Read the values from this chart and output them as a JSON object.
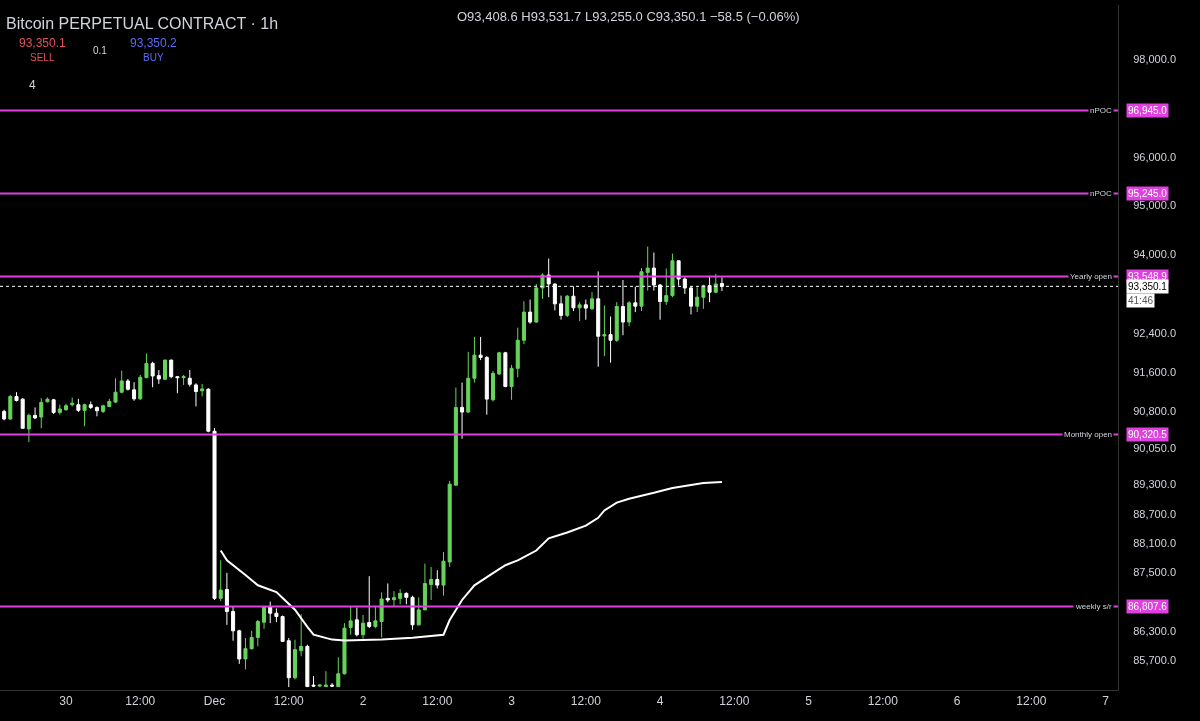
{
  "chart_data": {
    "type": "candlestick",
    "title": "Bitcoin PERPETUAL CONTRACT · 1h",
    "x": [
      "--11-29T14:00",
      "--11-29T15:00",
      "--11-29T16:00",
      "--11-29T17:00",
      "--11-29T18:00",
      "--11-29T19:00",
      "--11-29T20:00",
      "--11-29T21:00",
      "--11-29T22:00",
      "--11-29T23:00",
      "--11-30T00:00",
      "--11-30T01:00",
      "--11-30T02:00",
      "--11-30T03:00",
      "--11-30T04:00",
      "--11-30T05:00",
      "--11-30T06:00",
      "--11-30T07:00",
      "--11-30T08:00",
      "--11-30T09:00",
      "--11-30T10:00",
      "--11-30T11:00",
      "--11-30T12:00",
      "--11-30T13:00",
      "--11-30T14:00",
      "--11-30T15:00",
      "--11-30T16:00",
      "--11-30T17:00",
      "--11-30T18:00",
      "--11-30T19:00",
      "--11-30T20:00",
      "--11-30T21:00",
      "--11-30T22:00",
      "--11-30T23:00",
      "--12-01T00:00",
      "--12-01T01:00",
      "--12-01T02:00",
      "--12-01T03:00",
      "--12-01T04:00",
      "--12-01T05:00",
      "--12-01T06:00",
      "--12-01T07:00",
      "--12-01T08:00",
      "--12-01T09:00",
      "--12-01T10:00",
      "--12-01T11:00",
      "--12-01T12:00",
      "--12-01T13:00",
      "--12-01T14:00",
      "--12-01T15:00",
      "--12-01T16:00",
      "--12-01T17:00",
      "--12-01T18:00",
      "--12-01T19:00",
      "--12-01T20:00",
      "--12-01T21:00",
      "--12-01T22:00",
      "--12-01T23:00",
      "--12-02T00:00",
      "--12-02T01:00",
      "--12-02T02:00",
      "--12-02T03:00",
      "--12-02T04:00",
      "--12-02T05:00",
      "--12-02T06:00",
      "--12-02T07:00",
      "--12-02T08:00",
      "--12-02T09:00",
      "--12-02T10:00",
      "--12-02T11:00",
      "--12-02T12:00",
      "--12-02T13:00",
      "--12-02T14:00",
      "--12-02T15:00",
      "--12-02T16:00",
      "--12-02T17:00",
      "--12-02T18:00",
      "--12-02T19:00",
      "--12-02T20:00",
      "--12-02T21:00",
      "--12-02T22:00",
      "--12-02T23:00",
      "--12-03T00:00",
      "--12-03T01:00",
      "--12-03T02:00",
      "--12-03T03:00",
      "--12-03T04:00",
      "--12-03T05:00",
      "--12-03T06:00",
      "--12-03T07:00",
      "--12-03T08:00",
      "--12-03T09:00",
      "--12-03T10:00",
      "--12-03T11:00",
      "--12-03T12:00",
      "--12-03T13:00",
      "--12-03T14:00",
      "--12-03T15:00",
      "--12-03T16:00",
      "--12-03T17:00",
      "--12-03T18:00",
      "--12-03T19:00",
      "--12-03T20:00",
      "--12-03T21:00",
      "--12-03T22:00",
      "--12-03T23:00",
      "--12-04T00:00",
      "--12-04T01:00",
      "--12-04T02:00",
      "--12-04T03:00",
      "--12-04T04:00",
      "--12-04T05:00",
      "--12-04T06:00",
      "--12-04T07:00",
      "--12-04T08:00",
      "--12-04T09:00",
      "--12-04T10:00"
    ],
    "ohlc": [
      [
        90794,
        90828,
        90612,
        90639
      ],
      [
        90639,
        91132,
        90625,
        91099
      ],
      [
        91099,
        91186,
        90997,
        91017
      ],
      [
        91044,
        91065,
        90436,
        90449
      ],
      [
        90436,
        90747,
        90165,
        90713
      ],
      [
        90713,
        90875,
        90639,
        90659
      ],
      [
        90679,
        91065,
        90449,
        90977
      ],
      [
        90990,
        91078,
        90977,
        91044
      ],
      [
        91031,
        91051,
        90740,
        90774
      ],
      [
        90774,
        90930,
        90727,
        90842
      ],
      [
        90828,
        90950,
        90808,
        90909
      ],
      [
        90930,
        91078,
        90896,
        90963
      ],
      [
        90930,
        91051,
        90781,
        90815
      ],
      [
        90815,
        90950,
        90490,
        90930
      ],
      [
        90930,
        90997,
        90842,
        90875
      ],
      [
        90875,
        90896,
        90693,
        90808
      ],
      [
        90794,
        90930,
        90760,
        90909
      ],
      [
        90896,
        91051,
        90882,
        90997
      ],
      [
        90984,
        91471,
        90963,
        91186
      ],
      [
        91186,
        91626,
        91166,
        91416
      ],
      [
        91416,
        91457,
        91220,
        91247
      ],
      [
        91234,
        91389,
        91011,
        91051
      ],
      [
        91051,
        91538,
        91031,
        91491
      ],
      [
        91484,
        91978,
        91471,
        91775
      ],
      [
        91775,
        91809,
        91288,
        91518
      ],
      [
        91525,
        91640,
        91356,
        91457
      ],
      [
        91450,
        91856,
        91437,
        91842
      ],
      [
        91842,
        91856,
        91471,
        91504
      ],
      [
        91504,
        91518,
        91166,
        91484
      ],
      [
        91484,
        91538,
        91335,
        91504
      ],
      [
        91471,
        91640,
        91301,
        91349
      ],
      [
        91335,
        91369,
        90896,
        91200
      ],
      [
        91214,
        91356,
        91099,
        91254
      ],
      [
        91247,
        91268,
        90368,
        90389
      ],
      [
        90389,
        90456,
        86939,
        86973
      ],
      [
        86973,
        87751,
        86919,
        87142
      ],
      [
        87156,
        87494,
        86432,
        86703
      ],
      [
        86703,
        86804,
        86107,
        86310
      ],
      [
        86310,
        86331,
        85634,
        85735
      ],
      [
        85735,
        86162,
        85519,
        85945
      ],
      [
        85945,
        86310,
        85925,
        86175
      ],
      [
        86175,
        86534,
        85992,
        86500
      ],
      [
        86486,
        86818,
        86351,
        86804
      ],
      [
        86804,
        86906,
        86466,
        86669
      ],
      [
        86669,
        86770,
        86486,
        86601
      ],
      [
        86601,
        86622,
        86080,
        86094
      ],
      [
        86107,
        86162,
        85160,
        85350
      ],
      [
        85350,
        86128,
        85316,
        85925
      ],
      [
        85905,
        86649,
        85790,
        85992
      ],
      [
        85992,
        86026,
        85160,
        85170
      ],
      [
        85200,
        85384,
        85160,
        85180
      ],
      [
        85180,
        85220,
        85160,
        85200
      ],
      [
        85170,
        85485,
        85160,
        85200
      ],
      [
        85200,
        85240,
        85160,
        85180
      ],
      [
        85170,
        85769,
        85160,
        85431
      ],
      [
        85431,
        86466,
        85418,
        86364
      ],
      [
        86378,
        86804,
        86229,
        86513
      ],
      [
        86534,
        86784,
        86195,
        86229
      ],
      [
        86229,
        86635,
        86148,
        86466
      ],
      [
        86479,
        87426,
        86364,
        86398
      ],
      [
        86398,
        86804,
        86364,
        86513
      ],
      [
        86500,
        87095,
        86175,
        86960
      ],
      [
        86973,
        87277,
        86892,
        86939
      ],
      [
        86946,
        87122,
        86804,
        86987
      ],
      [
        86973,
        87162,
        86851,
        87075
      ],
      [
        87075,
        87095,
        86851,
        86994
      ],
      [
        86994,
        87027,
        86331,
        86432
      ],
      [
        86432,
        86994,
        86418,
        86737
      ],
      [
        86737,
        87683,
        86737,
        87277
      ],
      [
        87257,
        87615,
        86939,
        87359
      ],
      [
        87359,
        87548,
        87176,
        87244
      ],
      [
        87244,
        87920,
        87027,
        87731
      ],
      [
        87717,
        89374,
        87616,
        89306
      ],
      [
        89286,
        91281,
        89286,
        90875
      ],
      [
        90876,
        91383,
        90233,
        90781
      ],
      [
        90781,
        92012,
        90760,
        91471
      ],
      [
        91471,
        92316,
        91383,
        91944
      ],
      [
        91944,
        92316,
        91843,
        91897
      ],
      [
        91897,
        91924,
        90727,
        91045
      ],
      [
        91031,
        91620,
        90997,
        91572
      ],
      [
        91559,
        92012,
        91538,
        91992
      ],
      [
        91992,
        92012,
        91288,
        91302
      ],
      [
        91302,
        91741,
        91031,
        91674
      ],
      [
        91674,
        92505,
        91491,
        92248
      ],
      [
        92248,
        93046,
        92167,
        92823
      ],
      [
        92823,
        93080,
        92587,
        92620
      ],
      [
        92620,
        93398,
        92607,
        93317
      ],
      [
        93317,
        93615,
        93094,
        93581
      ],
      [
        93581,
        93919,
        93128,
        93398
      ],
      [
        93398,
        93412,
        92857,
        92992
      ],
      [
        92992,
        93161,
        92668,
        92756
      ],
      [
        92756,
        93175,
        92722,
        93148
      ],
      [
        93148,
        93351,
        92844,
        92911
      ],
      [
        92911,
        93026,
        92641,
        92972
      ],
      [
        92972,
        93080,
        92668,
        92905
      ],
      [
        92891,
        93229,
        92871,
        93094
      ],
      [
        93094,
        93655,
        91707,
        92330
      ],
      [
        92336,
        92959,
        91924,
        92363
      ],
      [
        92363,
        92735,
        91789,
        92248
      ],
      [
        92248,
        93026,
        92215,
        92938
      ],
      [
        92938,
        93479,
        92350,
        92620
      ],
      [
        92620,
        93046,
        92533,
        93013
      ],
      [
        93013,
        93344,
        92823,
        92945
      ],
      [
        92945,
        93723,
        92844,
        93648
      ],
      [
        93635,
        94162,
        93263,
        93723
      ],
      [
        93723,
        94041,
        93263,
        93378
      ],
      [
        93378,
        93398,
        92668,
        93040
      ],
      [
        93040,
        93716,
        92972,
        93161
      ],
      [
        93161,
        94020,
        93128,
        93872
      ],
      [
        93872,
        93885,
        93364,
        93500
      ],
      [
        93500,
        93533,
        93195,
        93317
      ],
      [
        93317,
        93344,
        92776,
        92945
      ],
      [
        92945,
        93331,
        92823,
        93128
      ],
      [
        93128,
        93385,
        92891,
        93364
      ],
      [
        93364,
        93567,
        93026,
        93229
      ],
      [
        93229,
        93601,
        93209,
        93398
      ],
      [
        93408.6,
        93531.7,
        93255.0,
        93350.1
      ]
    ],
    "colors": [
      "#ffffff",
      "#66d45a",
      "#ffffff",
      "#ffffff",
      "#66d45a",
      "#ffffff",
      "#66d45a",
      "#66d45a",
      "#ffffff",
      "#66d45a",
      "#66d45a",
      "#66d45a",
      "#ffffff",
      "#66d45a",
      "#ffffff",
      "#ffffff",
      "#66d45a",
      "#66d45a",
      "#66d45a",
      "#66d45a",
      "#ffffff",
      "#ffffff",
      "#66d45a",
      "#66d45a",
      "#ffffff",
      "#ffffff",
      "#66d45a",
      "#ffffff",
      "#ffffff",
      "#66d45a",
      "#ffffff",
      "#ffffff",
      "#66d45a",
      "#ffffff",
      "#ffffff",
      "#66d45a",
      "#ffffff",
      "#ffffff",
      "#ffffff",
      "#66d45a",
      "#66d45a",
      "#66d45a",
      "#66d45a",
      "#ffffff",
      "#ffffff",
      "#ffffff",
      "#ffffff",
      "#66d45a",
      "#66d45a",
      "#ffffff",
      "#ffffff",
      "#66d45a",
      "#66d45a",
      "#ffffff",
      "#66d45a",
      "#66d45a",
      "#66d45a",
      "#ffffff",
      "#66d45a",
      "#ffffff",
      "#66d45a",
      "#66d45a",
      "#ffffff",
      "#66d45a",
      "#66d45a",
      "#ffffff",
      "#ffffff",
      "#66d45a",
      "#66d45a",
      "#66d45a",
      "#ffffff",
      "#66d45a",
      "#66d45a",
      "#66d45a",
      "#ffffff",
      "#66d45a",
      "#66d45a",
      "#ffffff",
      "#ffffff",
      "#66d45a",
      "#66d45a",
      "#ffffff",
      "#66d45a",
      "#66d45a",
      "#66d45a",
      "#ffffff",
      "#66d45a",
      "#66d45a",
      "#ffffff",
      "#ffffff",
      "#ffffff",
      "#66d45a",
      "#ffffff",
      "#66d45a",
      "#ffffff",
      "#66d45a",
      "#ffffff",
      "#66d45a",
      "#ffffff",
      "#66d45a",
      "#ffffff",
      "#66d45a",
      "#ffffff",
      "#66d45a",
      "#66d45a",
      "#ffffff",
      "#ffffff",
      "#66d45a",
      "#66d45a",
      "#ffffff",
      "#ffffff",
      "#ffffff",
      "#66d45a",
      "#66d45a",
      "#ffffff",
      "#66d45a",
      "#ffffff"
    ],
    "series": [
      {
        "type": "line",
        "color": "#ffffff",
        "x": [
          "--12-01T01:00",
          "--12-01T02:00",
          "--12-01T05:00",
          "--12-01T07:00",
          "--12-01T10:00",
          "--12-01T11:00",
          "--12-01T13:00",
          "--12-01T15:00",
          "--12-01T16:00",
          "--12-01T19:00",
          "--12-01T21:00",
          "--12-02T03:00",
          "--12-02T08:00",
          "--12-02T13:00",
          "--12-02T14:00",
          "--12-02T16:00",
          "--12-02T18:00",
          "--12-02T21:00",
          "--12-02T23:00",
          "--12-03T01:00",
          "--12-03T04:00",
          "--12-03T06:00",
          "--12-03T09:00",
          "--12-03T12:00",
          "--12-03T14:00",
          "--12-03T15:00",
          "--12-03T17:00",
          "--12-03T19:00",
          "--12-03T23:00",
          "--12-04T02:00",
          "--12-04T05:00",
          "--12-04T07:00",
          "--12-04T10:00"
        ],
        "values": [
          87950,
          87750,
          87450,
          87240,
          87100,
          86980,
          86740,
          86390,
          86230,
          86130,
          86110,
          86130,
          86170,
          86230,
          86530,
          86940,
          87240,
          87490,
          87650,
          87750,
          87950,
          88200,
          88320,
          88460,
          88620,
          88770,
          88930,
          89010,
          89130,
          89230,
          89290,
          89330,
          89350
        ]
      }
    ],
    "xlim": [
      "--11-29T13:20",
      "--12-07T02:00"
    ],
    "xticks": [
      {
        "value": "--11-30",
        "label": "30"
      },
      {
        "value": "--11-30T12:00",
        "label": "12:00"
      },
      {
        "value": "--12-01",
        "label": "Dec"
      },
      {
        "value": "--12-01T12:00",
        "label": "12:00"
      },
      {
        "value": "--12-02",
        "label": "2"
      },
      {
        "value": "--12-02T12:00",
        "label": "12:00"
      },
      {
        "value": "--12-03",
        "label": "3"
      },
      {
        "value": "--12-03T12:00",
        "label": "12:00"
      },
      {
        "value": "--12-04",
        "label": "4"
      },
      {
        "value": "--12-04T12:00",
        "label": "12:00"
      },
      {
        "value": "--12-05",
        "label": "5"
      },
      {
        "value": "--12-05T12:00",
        "label": "12:00"
      },
      {
        "value": "--12-06",
        "label": "6"
      },
      {
        "value": "--12-06T12:00",
        "label": "12:00"
      },
      {
        "value": "--12-07",
        "label": "7"
      }
    ],
    "ylim": [
      85100,
      99100
    ],
    "yticks": [
      {
        "value": 98000,
        "label": "98,000.0"
      },
      {
        "value": 96000,
        "label": "96,000.0"
      },
      {
        "value": 95000,
        "label": "95,000.0"
      },
      {
        "value": 94000,
        "label": "94,000.0"
      },
      {
        "value": 92400,
        "label": "92,400.0"
      },
      {
        "value": 91600,
        "label": "91,600.0"
      },
      {
        "value": 90800,
        "label": "90,800.0"
      },
      {
        "value": 90050,
        "label": "90,050.0"
      },
      {
        "value": 89300,
        "label": "89,300.0"
      },
      {
        "value": 88700,
        "label": "88,700.0"
      },
      {
        "value": 88100,
        "label": "88,100.0"
      },
      {
        "value": 87500,
        "label": "87,500.0"
      },
      {
        "value": 86300,
        "label": "86,300.0"
      },
      {
        "value": 85700,
        "label": "85,700.0"
      }
    ],
    "ref_lines": [
      {
        "axis": "y",
        "value": 96945.0,
        "label": "nPOC",
        "color": "#e040e0"
      },
      {
        "axis": "y",
        "value": 95245.0,
        "label": "nPOC",
        "color": "#e040e0"
      },
      {
        "axis": "y",
        "value": 93548.9,
        "label": "Yearly open",
        "color": "#e040e0"
      },
      {
        "axis": "y",
        "value": 90320.5,
        "label": "Monthly open",
        "color": "#e040e0"
      },
      {
        "axis": "y",
        "value": 86807.6,
        "label": "weekly s/r",
        "color": "#e040e0"
      },
      {
        "axis": "y",
        "value": 93350.1,
        "color": "#ffffff",
        "line_style": "dotted"
      }
    ],
    "annotations": [
      "O93,408.6 H93,531.7 L93,255.0 C93,350.1 −58.5 (−0.06%)",
      "93,350.1",
      "SELL",
      "0.1",
      "93,350.2",
      "BUY",
      "4",
      "41:46",
      "96,945.0",
      "95,245.0",
      "93,548.9",
      "90,320.5",
      "86,807.6",
      "93,350.1"
    ],
    "grid": false
  }
}
